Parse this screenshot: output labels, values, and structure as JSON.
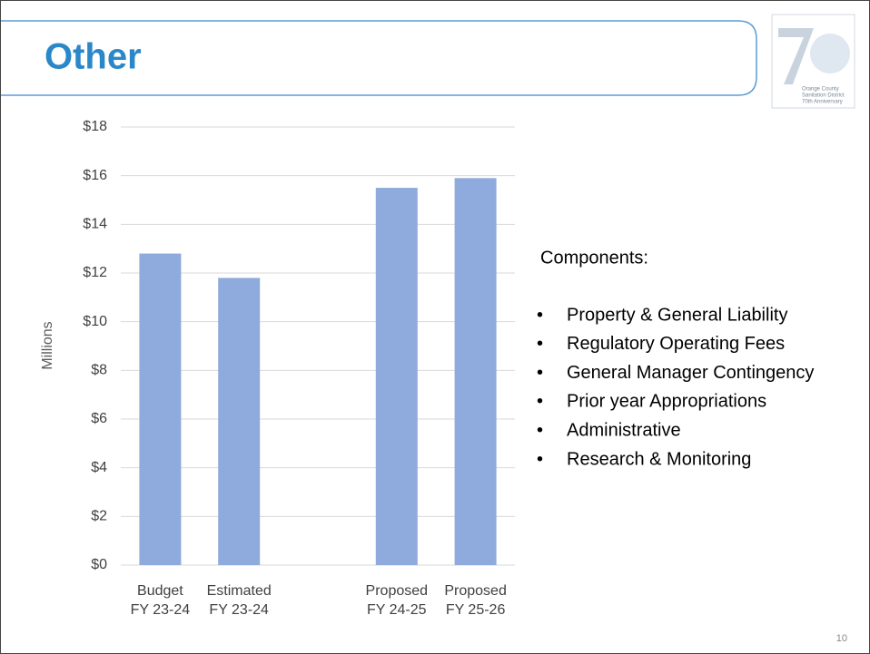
{
  "header": {
    "title": "Other"
  },
  "logo": {
    "lines": [
      "Orange County",
      "Sanitation District",
      "70th Anniversary"
    ]
  },
  "chart_data": {
    "type": "bar",
    "y_label": "Millions",
    "categories": [
      "Budget\nFY 23-24",
      "Estimated\nFY 23-24",
      null,
      "Proposed\nFY 24-25",
      "Proposed\nFY 25-26"
    ],
    "values": [
      12.8,
      11.8,
      null,
      15.5,
      15.9
    ],
    "color": "#8faadc",
    "ylim": [
      0,
      18
    ],
    "yticks": [
      {
        "value": 0,
        "label": "$0"
      },
      {
        "value": 2,
        "label": "$2"
      },
      {
        "value": 4,
        "label": "$4"
      },
      {
        "value": 6,
        "label": "$6"
      },
      {
        "value": 8,
        "label": "$8"
      },
      {
        "value": 10,
        "label": "$10"
      },
      {
        "value": 12,
        "label": "$12"
      },
      {
        "value": 14,
        "label": "$14"
      },
      {
        "value": 16,
        "label": "$16"
      },
      {
        "value": 18,
        "label": "$18"
      }
    ],
    "grid": true
  },
  "components": {
    "heading": "Components:",
    "items": [
      "Property & General Liability",
      "Regulatory Operating Fees",
      "General Manager Contingency",
      "Prior year Appropriations",
      "Administrative",
      "Research & Monitoring"
    ]
  },
  "page_number": "10"
}
